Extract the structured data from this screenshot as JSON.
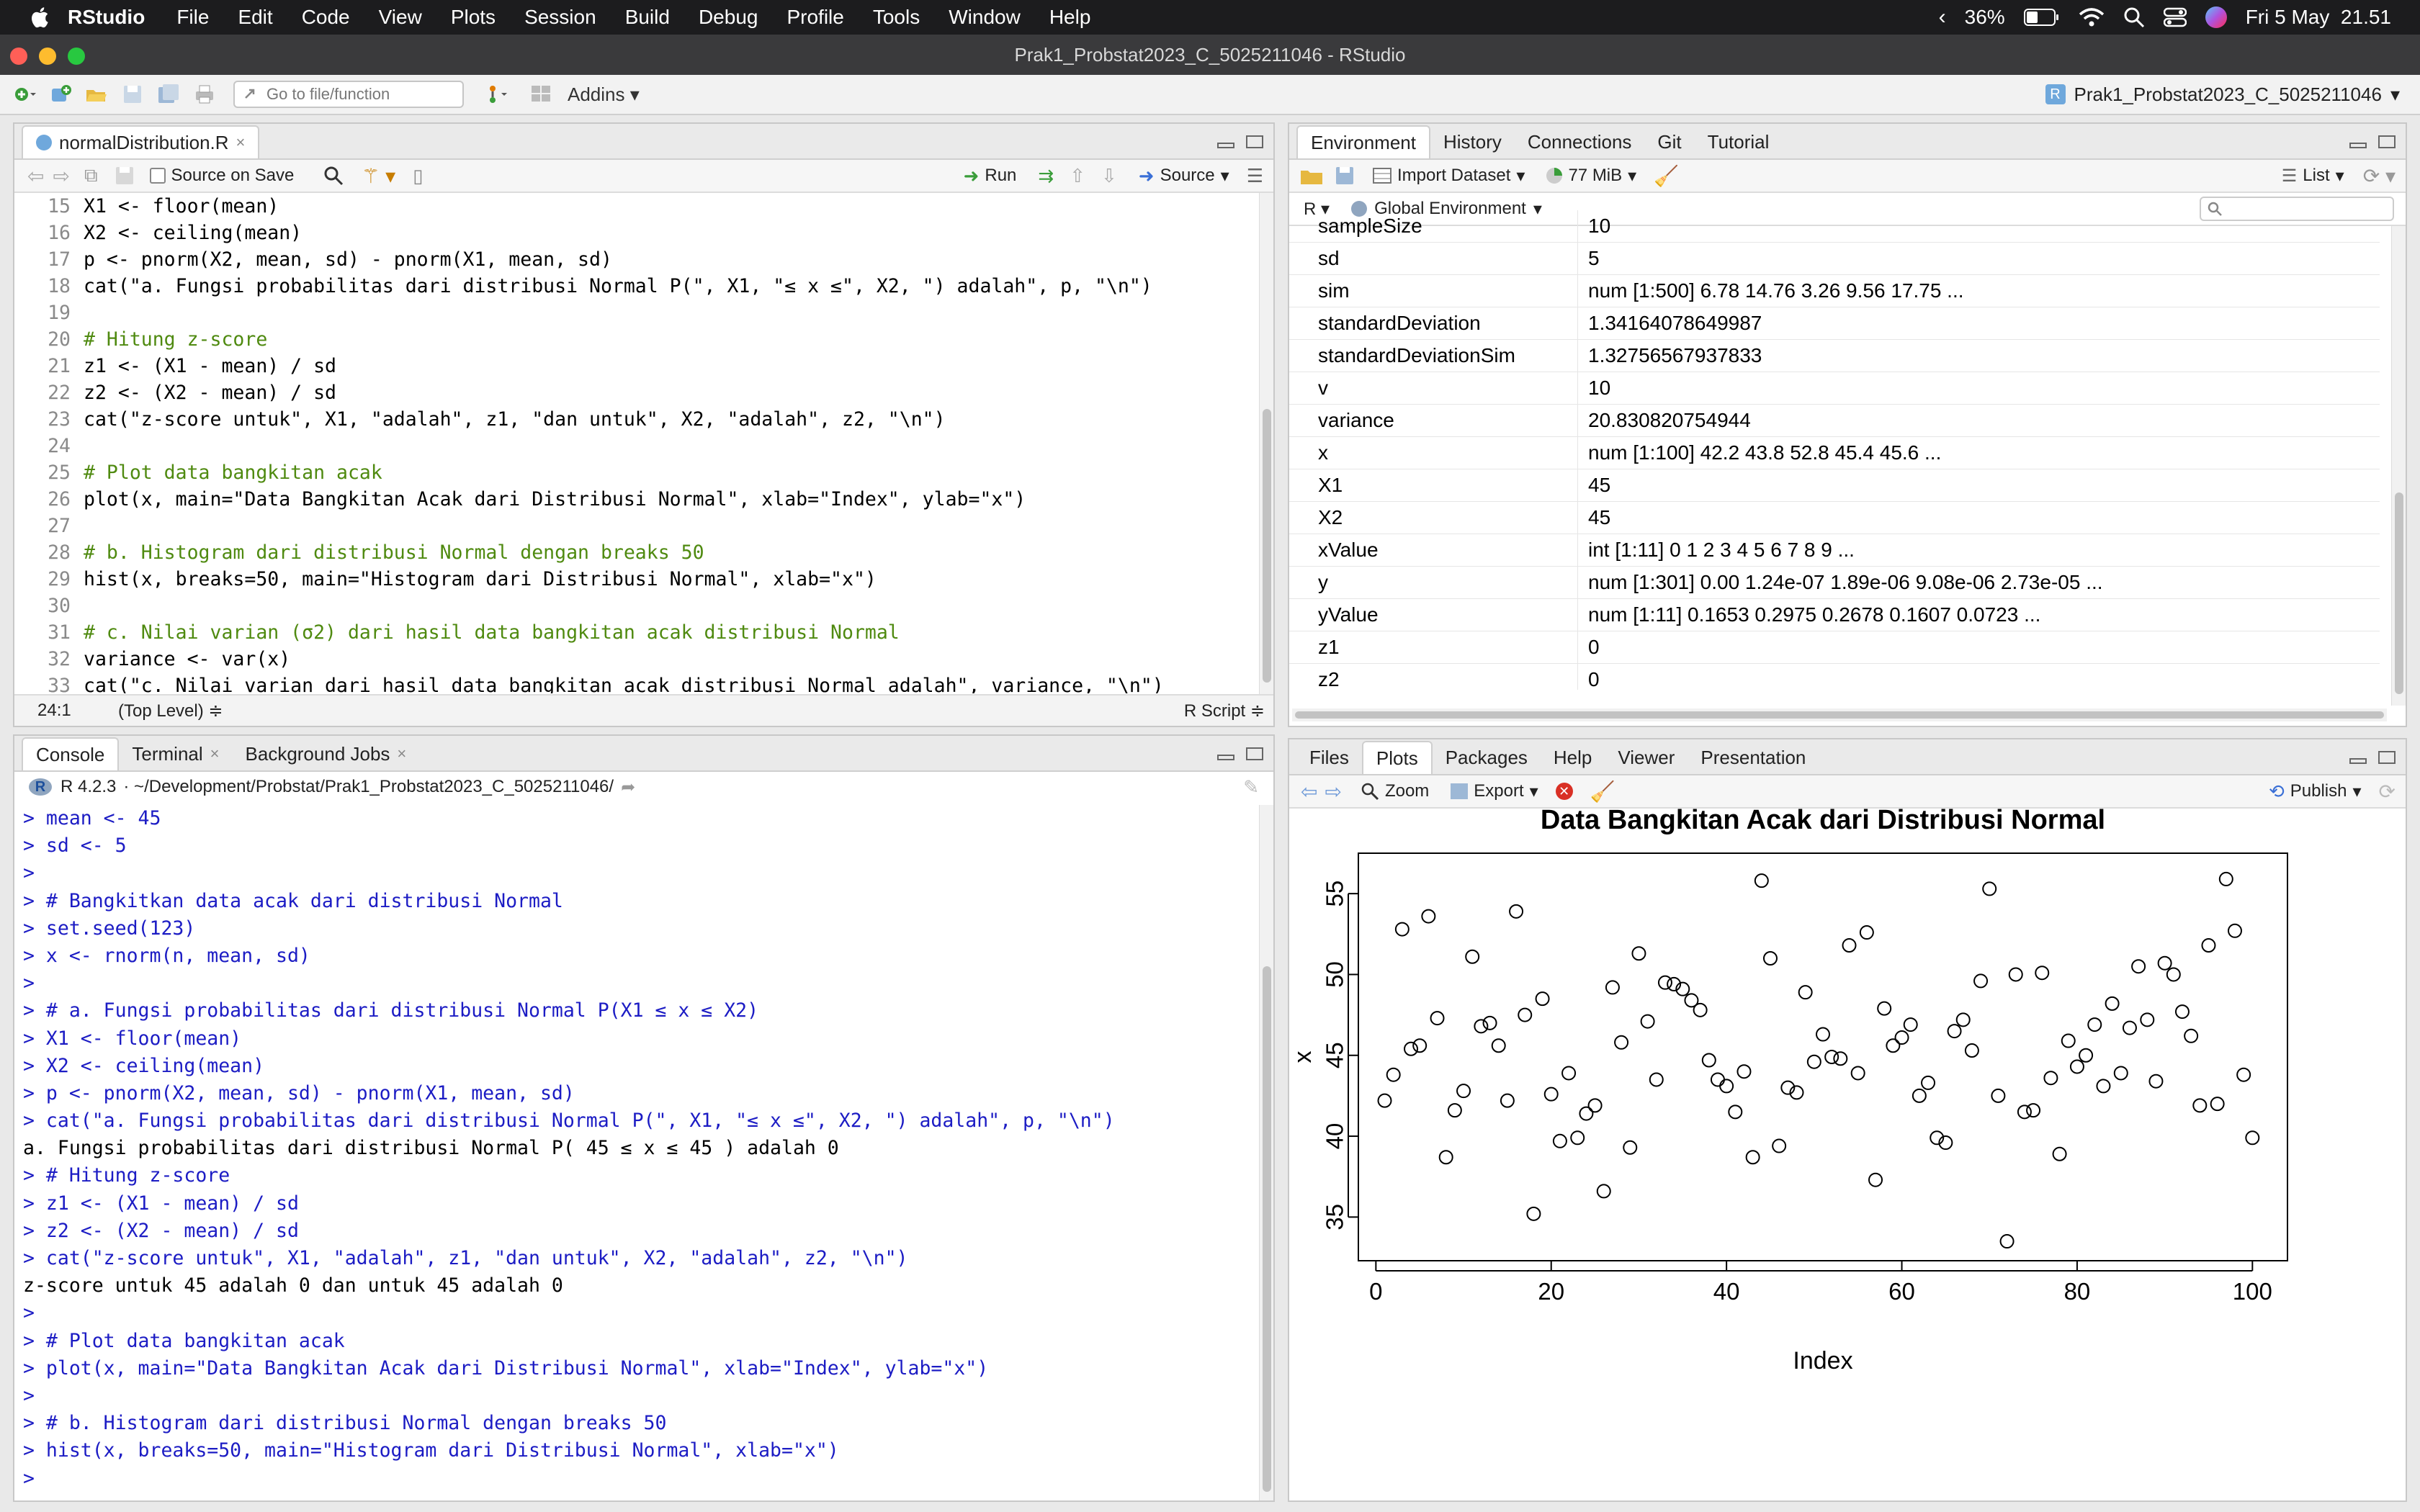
{
  "menubar": {
    "app": "RStudio",
    "items": [
      "File",
      "Edit",
      "Code",
      "View",
      "Plots",
      "Session",
      "Build",
      "Debug",
      "Profile",
      "Tools",
      "Window",
      "Help"
    ],
    "battery": "36%",
    "datetime": "Fri 5 May  21.51"
  },
  "window": {
    "title": "Prak1_Probstat2023_C_5025211046 - RStudio"
  },
  "toolbar": {
    "goto_placeholder": "Go to file/function",
    "addins": "Addins",
    "project": "Prak1_Probstat2023_C_5025211046"
  },
  "editor": {
    "tab": "normalDistribution.R",
    "source_on_save": "Source on Save",
    "run": "Run",
    "source": "Source",
    "cursor": "24:1",
    "scope": "(Top Level) ≑",
    "filetype": "R Script ≑",
    "lines": [
      {
        "n": "15",
        "text": "X1 <- floor(mean)",
        "comment": false
      },
      {
        "n": "16",
        "text": "X2 <- ceiling(mean)",
        "comment": false
      },
      {
        "n": "17",
        "text": "p <- pnorm(X2, mean, sd) - pnorm(X1, mean, sd)",
        "comment": false
      },
      {
        "n": "18",
        "text": "cat(\"a. Fungsi probabilitas dari distribusi Normal P(\", X1, \"≤ x ≤\", X2, \") adalah\", p, \"\\n\")",
        "comment": false
      },
      {
        "n": "19",
        "text": "",
        "comment": false
      },
      {
        "n": "20",
        "text": "# Hitung z-score",
        "comment": true
      },
      {
        "n": "21",
        "text": "z1 <- (X1 - mean) / sd",
        "comment": false
      },
      {
        "n": "22",
        "text": "z2 <- (X2 - mean) / sd",
        "comment": false
      },
      {
        "n": "23",
        "text": "cat(\"z-score untuk\", X1, \"adalah\", z1, \"dan untuk\", X2, \"adalah\", z2, \"\\n\")",
        "comment": false
      },
      {
        "n": "24",
        "text": "",
        "comment": false
      },
      {
        "n": "25",
        "text": "# Plot data bangkitan acak",
        "comment": true
      },
      {
        "n": "26",
        "text": "plot(x, main=\"Data Bangkitan Acak dari Distribusi Normal\", xlab=\"Index\", ylab=\"x\")",
        "comment": false
      },
      {
        "n": "27",
        "text": "",
        "comment": false
      },
      {
        "n": "28",
        "text": "# b. Histogram dari distribusi Normal dengan breaks 50",
        "comment": true
      },
      {
        "n": "29",
        "text": "hist(x, breaks=50, main=\"Histogram dari Distribusi Normal\", xlab=\"x\")",
        "comment": false
      },
      {
        "n": "30",
        "text": "",
        "comment": false
      },
      {
        "n": "31",
        "text": "# c. Nilai varian (σ2) dari hasil data bangkitan acak distribusi Normal",
        "comment": true
      },
      {
        "n": "32",
        "text": "variance <- var(x)",
        "comment": false
      },
      {
        "n": "33",
        "text": "cat(\"c. Nilai varian dari hasil data bangkitan acak distribusi Normal adalah\", variance, \"\\n\")",
        "comment": false
      }
    ]
  },
  "console": {
    "tabs": [
      "Console",
      "Terminal",
      "Background Jobs"
    ],
    "r_version": "R 4.2.3",
    "path": "· ~/Development/Probstat/Prak1_Probstat2023_C_5025211046/",
    "lines": [
      {
        "t": "in",
        "text": "> mean <- 45"
      },
      {
        "t": "in",
        "text": "> sd <- 5"
      },
      {
        "t": "in",
        "text": ">"
      },
      {
        "t": "in",
        "text": "> # Bangkitkan data acak dari distribusi Normal"
      },
      {
        "t": "in",
        "text": "> set.seed(123)"
      },
      {
        "t": "in",
        "text": "> x <- rnorm(n, mean, sd)"
      },
      {
        "t": "in",
        "text": ">"
      },
      {
        "t": "in",
        "text": "> # a. Fungsi probabilitas dari distribusi Normal P(X1 ≤ x ≤ X2)"
      },
      {
        "t": "in",
        "text": "> X1 <- floor(mean)"
      },
      {
        "t": "in",
        "text": "> X2 <- ceiling(mean)"
      },
      {
        "t": "in",
        "text": "> p <- pnorm(X2, mean, sd) - pnorm(X1, mean, sd)"
      },
      {
        "t": "in",
        "text": "> cat(\"a. Fungsi probabilitas dari distribusi Normal P(\", X1, \"≤ x ≤\", X2, \") adalah\", p, \"\\n\")"
      },
      {
        "t": "out",
        "text": "a. Fungsi probabilitas dari distribusi Normal P( 45 ≤ x ≤ 45 ) adalah 0"
      },
      {
        "t": "in",
        "text": "> # Hitung z-score"
      },
      {
        "t": "in",
        "text": "> z1 <- (X1 - mean) / sd"
      },
      {
        "t": "in",
        "text": "> z2 <- (X2 - mean) / sd"
      },
      {
        "t": "in",
        "text": "> cat(\"z-score untuk\", X1, \"adalah\", z1, \"dan untuk\", X2, \"adalah\", z2, \"\\n\")"
      },
      {
        "t": "out",
        "text": "z-score untuk 45 adalah 0 dan untuk 45 adalah 0"
      },
      {
        "t": "in",
        "text": ">"
      },
      {
        "t": "in",
        "text": "> # Plot data bangkitan acak"
      },
      {
        "t": "in",
        "text": "> plot(x, main=\"Data Bangkitan Acak dari Distribusi Normal\", xlab=\"Index\", ylab=\"x\")"
      },
      {
        "t": "in",
        "text": ">"
      },
      {
        "t": "in",
        "text": "> # b. Histogram dari distribusi Normal dengan breaks 50"
      },
      {
        "t": "in",
        "text": "> hist(x, breaks=50, main=\"Histogram dari Distribusi Normal\", xlab=\"x\")"
      },
      {
        "t": "in",
        "text": "> "
      }
    ]
  },
  "env": {
    "tabs": [
      "Environment",
      "History",
      "Connections",
      "Git",
      "Tutorial"
    ],
    "import_dataset": "Import Dataset",
    "memory": "77 MiB",
    "list_label": "List",
    "language": "R",
    "scope": "Global Environment",
    "rows": [
      {
        "name": "sampleSize",
        "value": "10"
      },
      {
        "name": "sd",
        "value": "5"
      },
      {
        "name": "sim",
        "value": "num [1:500] 6.78 14.76 3.26 9.56 17.75 ..."
      },
      {
        "name": "standardDeviation",
        "value": "1.34164078649987"
      },
      {
        "name": "standardDeviationSim",
        "value": "1.32756567937833"
      },
      {
        "name": "v",
        "value": "10"
      },
      {
        "name": "variance",
        "value": "20.830820754944"
      },
      {
        "name": "x",
        "value": "num [1:100] 42.2 43.8 52.8 45.4 45.6 ..."
      },
      {
        "name": "X1",
        "value": "45"
      },
      {
        "name": "X2",
        "value": "45"
      },
      {
        "name": "xValue",
        "value": "int [1:11] 0 1 2 3 4 5 6 7 8 9 ..."
      },
      {
        "name": "y",
        "value": "num [1:301] 0.00 1.24e-07 1.89e-06 9.08e-06 2.73e-05 ..."
      },
      {
        "name": "yValue",
        "value": "num [1:11] 0.1653 0.2975 0.2678 0.1607 0.0723 ..."
      },
      {
        "name": "z1",
        "value": "0"
      },
      {
        "name": "z2",
        "value": "0"
      }
    ]
  },
  "files": {
    "tabs": [
      "Files",
      "Plots",
      "Packages",
      "Help",
      "Viewer",
      "Presentation"
    ],
    "zoom": "Zoom",
    "export": "Export",
    "publish": "Publish"
  },
  "chart_data": {
    "type": "scatter",
    "title": "Data Bangkitan Acak dari Distribusi Normal",
    "xlabel": "Index",
    "ylabel": "x",
    "xlim": [
      -2,
      104
    ],
    "ylim": [
      32.3,
      57.5
    ],
    "xticks": [
      0,
      20,
      40,
      60,
      80,
      100
    ],
    "yticks": [
      35,
      40,
      45,
      50,
      55
    ],
    "grid": false,
    "x": [
      1,
      2,
      3,
      4,
      5,
      6,
      7,
      8,
      9,
      10,
      11,
      12,
      13,
      14,
      15,
      16,
      17,
      18,
      19,
      20,
      21,
      22,
      23,
      24,
      25,
      26,
      27,
      28,
      29,
      30,
      31,
      32,
      33,
      34,
      35,
      36,
      37,
      38,
      39,
      40,
      41,
      42,
      43,
      44,
      45,
      46,
      47,
      48,
      49,
      50,
      51,
      52,
      53,
      54,
      55,
      56,
      57,
      58,
      59,
      60,
      61,
      62,
      63,
      64,
      65,
      66,
      67,
      68,
      69,
      70,
      71,
      72,
      73,
      74,
      75,
      76,
      77,
      78,
      79,
      80,
      81,
      82,
      83,
      84,
      85,
      86,
      87,
      88,
      89,
      90,
      91,
      92,
      93,
      94,
      95,
      96,
      97,
      98,
      99,
      100
    ],
    "y": [
      42.2,
      43.8,
      52.8,
      45.4,
      45.6,
      53.6,
      47.3,
      38.7,
      41.6,
      42.8,
      51.1,
      46.8,
      47.0,
      45.6,
      42.2,
      53.9,
      47.5,
      35.2,
      48.5,
      42.6,
      39.7,
      43.9,
      39.9,
      41.4,
      41.9,
      36.6,
      49.2,
      45.8,
      39.3,
      51.3,
      47.1,
      43.5,
      49.5,
      49.4,
      49.1,
      48.4,
      47.8,
      44.7,
      43.5,
      43.1,
      41.5,
      44.0,
      38.7,
      55.8,
      51.0,
      39.4,
      43.0,
      42.7,
      48.9,
      44.6,
      46.3,
      44.9,
      44.8,
      51.8,
      43.9,
      52.6,
      37.3,
      47.9,
      45.6,
      46.1,
      46.9,
      42.5,
      43.3,
      39.9,
      39.6,
      46.5,
      47.2,
      45.3,
      49.6,
      55.3,
      42.5,
      33.5,
      50.0,
      41.5,
      41.6,
      50.1,
      43.6,
      38.9,
      45.9,
      44.3,
      45.0,
      46.9,
      43.1,
      48.2,
      43.9,
      46.7,
      50.5,
      47.2,
      43.4,
      50.7,
      50.0,
      47.7,
      46.2,
      41.9,
      51.8,
      42.0,
      55.9,
      52.7,
      43.8,
      39.9
    ]
  }
}
